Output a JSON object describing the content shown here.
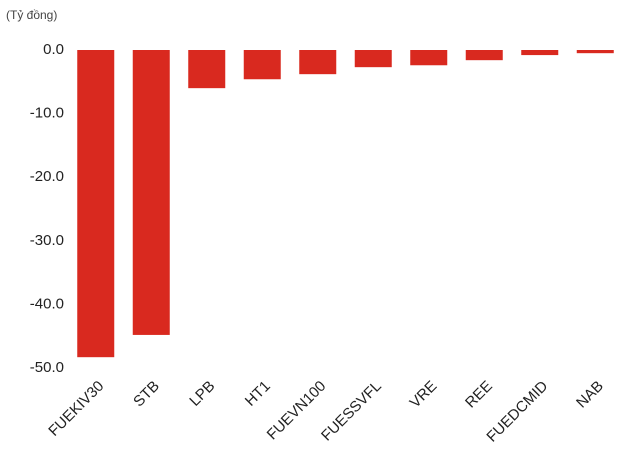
{
  "chart_data": {
    "type": "bar",
    "y_label": "(Tỷ đồng)",
    "categories": [
      "FUEKIV30",
      "STB",
      "LPB",
      "HT1",
      "FUEVN100",
      "FUESSVFL",
      "VRE",
      "REE",
      "FUEDCMID",
      "NAB"
    ],
    "values": [
      -48.3,
      -44.8,
      -6.0,
      -4.6,
      -3.8,
      -2.7,
      -2.4,
      -1.6,
      -0.8,
      -0.5
    ],
    "color": "#d9291f",
    "ylim": [
      -50,
      0
    ],
    "yticks": [
      {
        "value": 0,
        "label": "0.0"
      },
      {
        "value": -10,
        "label": "-10.0"
      },
      {
        "value": -20,
        "label": "-20.0"
      },
      {
        "value": -30,
        "label": "-30.0"
      },
      {
        "value": -40,
        "label": "-40.0"
      },
      {
        "value": -50,
        "label": "-50.0"
      }
    ],
    "grid": false
  }
}
